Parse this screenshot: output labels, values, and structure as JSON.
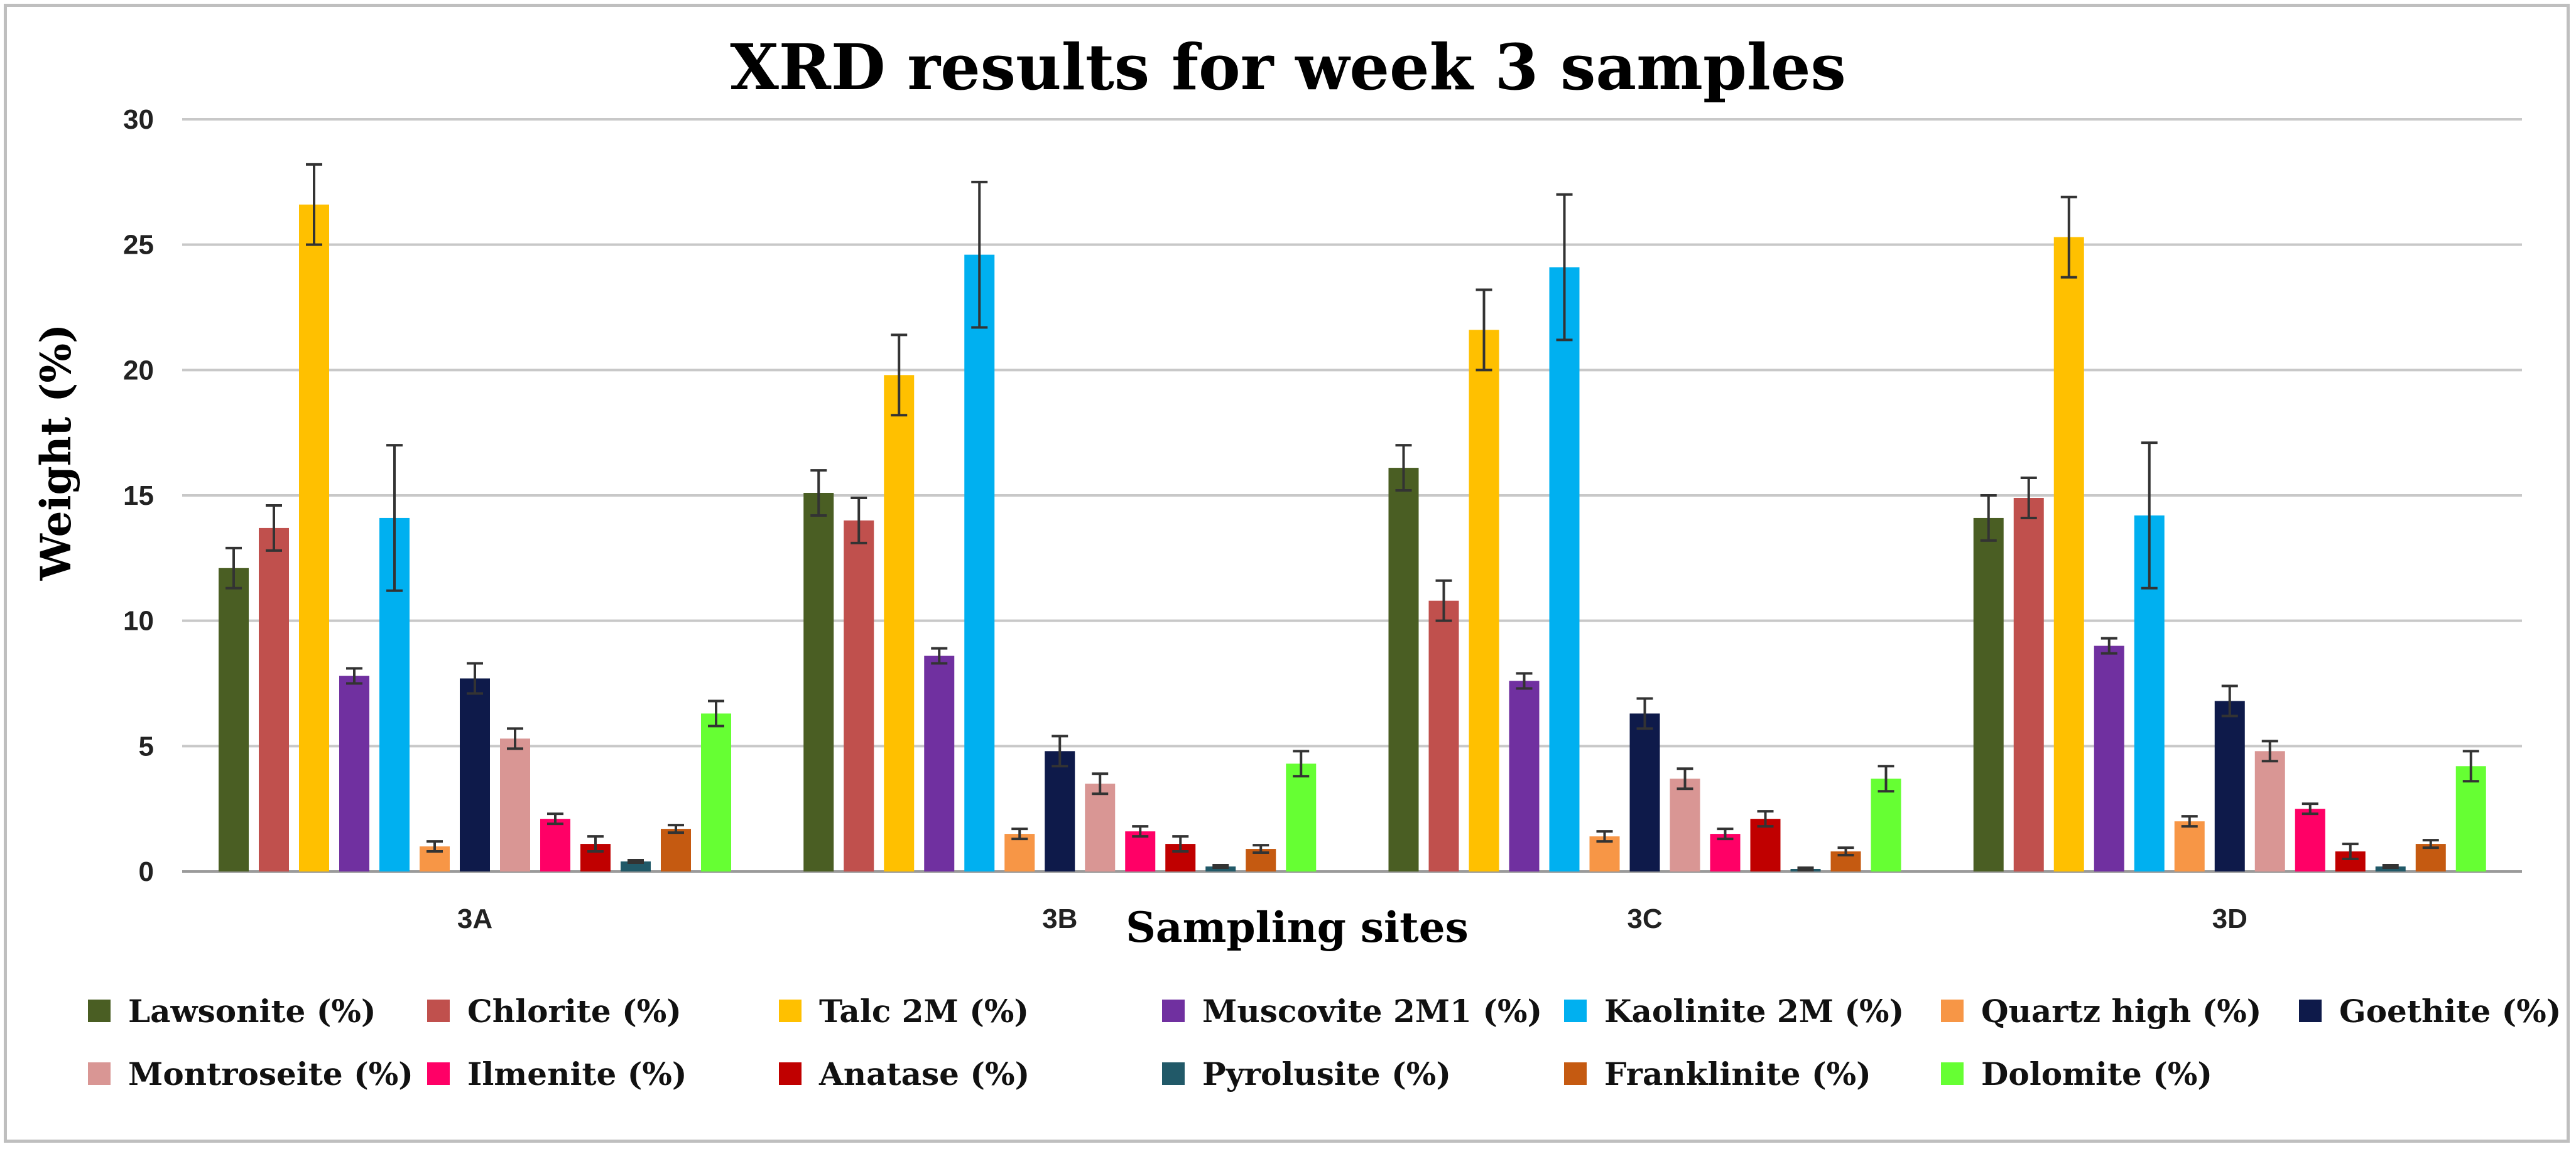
{
  "chart_data": {
    "type": "bar",
    "title": "XRD results for week 3 samples",
    "xlabel": "Sampling sites",
    "ylabel": "Weight (%)",
    "ylim": [
      0,
      30
    ],
    "yticks": [
      0,
      5,
      10,
      15,
      20,
      25,
      30
    ],
    "grid": true,
    "legend_position": "bottom",
    "categories": [
      "3A",
      "3B",
      "3C",
      "3D"
    ],
    "series": [
      {
        "name": "Lawsonite (%)",
        "color": "#4a5e23",
        "values": [
          12.1,
          15.1,
          16.1,
          14.1
        ],
        "errors": [
          0.8,
          0.9,
          0.9,
          0.9
        ]
      },
      {
        "name": "Chlorite (%)",
        "color": "#c0504d",
        "values": [
          13.7,
          14.0,
          10.8,
          14.9
        ],
        "errors": [
          0.9,
          0.9,
          0.8,
          0.8
        ]
      },
      {
        "name": "Talc 2M (%)",
        "color": "#ffc000",
        "values": [
          26.6,
          19.8,
          21.6,
          25.3
        ],
        "errors": [
          1.6,
          1.6,
          1.6,
          1.6
        ]
      },
      {
        "name": "Muscovite 2M1 (%)",
        "color": "#7030a0",
        "values": [
          7.8,
          8.6,
          7.6,
          9.0
        ],
        "errors": [
          0.3,
          0.3,
          0.3,
          0.3
        ]
      },
      {
        "name": "Kaolinite 2M (%)",
        "color": "#00b0f0",
        "values": [
          14.1,
          24.6,
          24.1,
          14.2
        ],
        "errors": [
          2.9,
          2.9,
          2.9,
          2.9
        ]
      },
      {
        "name": "Quartz high (%)",
        "color": "#f79646",
        "values": [
          1.0,
          1.5,
          1.4,
          2.0
        ],
        "errors": [
          0.2,
          0.2,
          0.2,
          0.2
        ]
      },
      {
        "name": "Goethite (%)",
        "color": "#0e1a4a",
        "values": [
          7.7,
          4.8,
          6.3,
          6.8
        ],
        "errors": [
          0.6,
          0.6,
          0.6,
          0.6
        ]
      },
      {
        "name": "Montroseite (%)",
        "color": "#d99694",
        "values": [
          5.3,
          3.5,
          3.7,
          4.8
        ],
        "errors": [
          0.4,
          0.4,
          0.4,
          0.4
        ]
      },
      {
        "name": "Ilmenite (%)",
        "color": "#ff0066",
        "values": [
          2.1,
          1.6,
          1.5,
          2.5
        ],
        "errors": [
          0.2,
          0.2,
          0.2,
          0.2
        ]
      },
      {
        "name": "Anatase (%)",
        "color": "#c00000",
        "values": [
          1.1,
          1.1,
          2.1,
          0.8
        ],
        "errors": [
          0.3,
          0.3,
          0.3,
          0.3
        ]
      },
      {
        "name": "Pyrolusite (%)",
        "color": "#215968",
        "values": [
          0.4,
          0.2,
          0.1,
          0.2
        ],
        "errors": [
          0.05,
          0.05,
          0.05,
          0.05
        ]
      },
      {
        "name": "Franklinite (%)",
        "color": "#c55a11",
        "values": [
          1.7,
          0.9,
          0.8,
          1.1
        ],
        "errors": [
          0.15,
          0.15,
          0.15,
          0.15
        ]
      },
      {
        "name": "Dolomite (%)",
        "color": "#66ff33",
        "values": [
          6.3,
          4.3,
          3.7,
          4.2
        ],
        "errors": [
          0.5,
          0.5,
          0.5,
          0.6
        ]
      }
    ]
  }
}
